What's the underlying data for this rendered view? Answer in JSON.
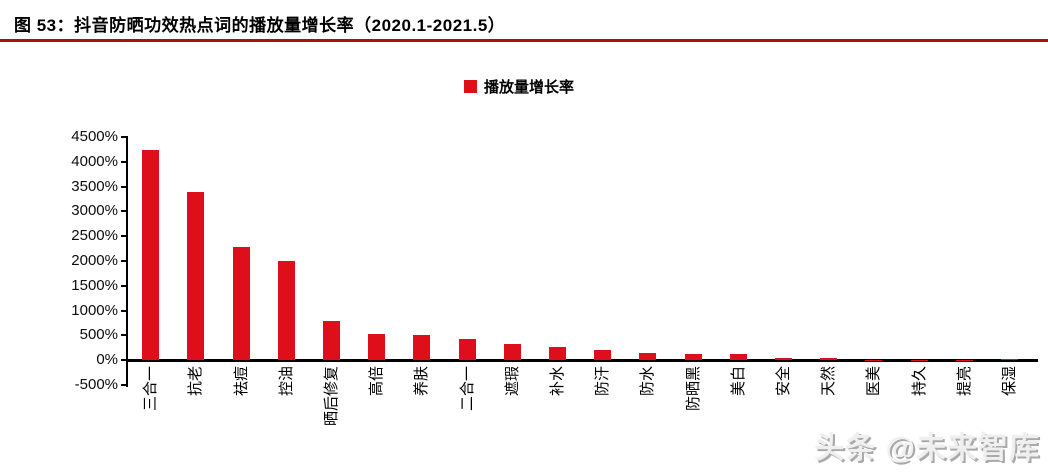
{
  "header": {
    "title": "图 53：抖音防晒功效热点词的播放量增长率（2020.1-2021.5）"
  },
  "legend": {
    "label": "播放量增长率",
    "swatch_color": "#df0e1b"
  },
  "watermark": {
    "text": "头条 @未来智库"
  },
  "colors": {
    "bar": "#df0e1b",
    "title_rule": "#a51217",
    "axis": "#000000",
    "watermark_gray": "#bfbfbf"
  },
  "chart_data": {
    "type": "bar",
    "title": "抖音防晒功效热点词的播放量增长率（2020.1-2021.5）",
    "legend_entries": [
      "播放量增长率"
    ],
    "legend_position": "top-center",
    "grid": false,
    "categories": [
      "三合一",
      "抗老",
      "祛痘",
      "控油",
      "晒后修复",
      "高倍",
      "养肤",
      "二合一",
      "遮瑕",
      "补水",
      "防汗",
      "防水",
      "防晒黑",
      "美白",
      "安全",
      "天然",
      "医美",
      "持久",
      "提亮",
      "保湿"
    ],
    "values": [
      4230,
      3400,
      2280,
      1990,
      790,
      520,
      500,
      420,
      320,
      270,
      210,
      150,
      130,
      120,
      50,
      40,
      10,
      5,
      5,
      30
    ],
    "value_unit": "%",
    "xlabel": "",
    "ylabel": "",
    "ylim": [
      -500,
      4500
    ],
    "ytick_step": 500,
    "ytick_suffix": "%"
  }
}
